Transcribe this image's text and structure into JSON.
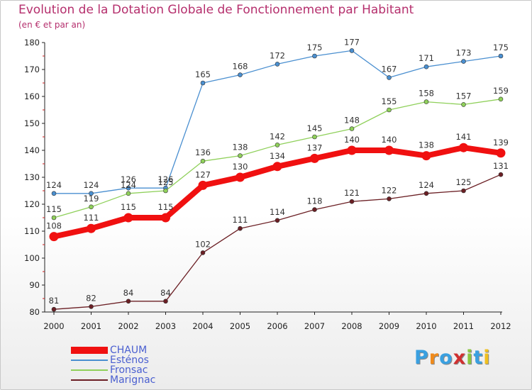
{
  "chart_data": {
    "type": "line",
    "title": "Evolution de la Dotation Globale de Fonctionnement par Habitant",
    "subtitle": "(en € et par an)",
    "xlabel": "",
    "ylabel": "",
    "x": [
      "2000",
      "2001",
      "2002",
      "2003",
      "2004",
      "2005",
      "2006",
      "2007",
      "2008",
      "2009",
      "2010",
      "2011",
      "2012"
    ],
    "ylim": [
      80,
      180
    ],
    "yticks": [
      "80",
      "90",
      "100",
      "110",
      "120",
      "130",
      "140",
      "150",
      "160",
      "170",
      "180"
    ],
    "grid": false,
    "legend_position": "bottom-left",
    "series": [
      {
        "name": "Esténos",
        "color": "#4a8fd0",
        "values": [
          124,
          124,
          126,
          126,
          165,
          168,
          172,
          175,
          177,
          167,
          171,
          173,
          175
        ],
        "labels": [
          "124",
          "124",
          "126",
          "126",
          "165",
          "168",
          "172",
          "175",
          "177",
          "167",
          "171",
          "173",
          "175"
        ]
      },
      {
        "name": "Fronsac",
        "color": "#8fd05a",
        "values": [
          115,
          119,
          124,
          125,
          136,
          138,
          142,
          145,
          148,
          155,
          158,
          157,
          159
        ],
        "labels": [
          "115",
          "119",
          "124",
          "125",
          "136",
          "138",
          "142",
          "145",
          "148",
          "155",
          "158",
          "157",
          "159"
        ]
      },
      {
        "name": "Marignac",
        "color": "#6b1f24",
        "values": [
          81,
          82,
          84,
          84,
          102,
          111,
          114,
          118,
          121,
          122,
          124,
          125,
          131
        ],
        "labels": [
          "81",
          "82",
          "84",
          "84",
          "102",
          "111",
          "114",
          "118",
          "121",
          "122",
          "124",
          "125",
          "131"
        ]
      },
      {
        "name": "CHAUM",
        "color": "#f01010",
        "emphasis": true,
        "values": [
          108,
          111,
          115,
          115,
          127,
          130,
          134,
          137,
          140,
          140,
          138,
          141,
          139
        ],
        "labels": [
          "108",
          "111",
          "115",
          "115",
          "127",
          "130",
          "134",
          "137",
          "140",
          "140",
          "138",
          "141",
          "139"
        ]
      }
    ]
  },
  "legend": [
    {
      "label": "CHAUM",
      "color": "#f01010"
    },
    {
      "label": "Esténos",
      "color": "#4a8fd0"
    },
    {
      "label": "Fronsac",
      "color": "#8fd05a"
    },
    {
      "label": "Marignac",
      "color": "#6b1f24"
    }
  ],
  "logo": {
    "letters": [
      "P",
      "r",
      "o",
      "x",
      "i",
      "t",
      "i"
    ],
    "colors": [
      "#3aa0e0",
      "#f08a1a",
      "#3aa0e0",
      "#d03030",
      "#8cc63f",
      "#3aa0e0",
      "#f0c020"
    ]
  }
}
